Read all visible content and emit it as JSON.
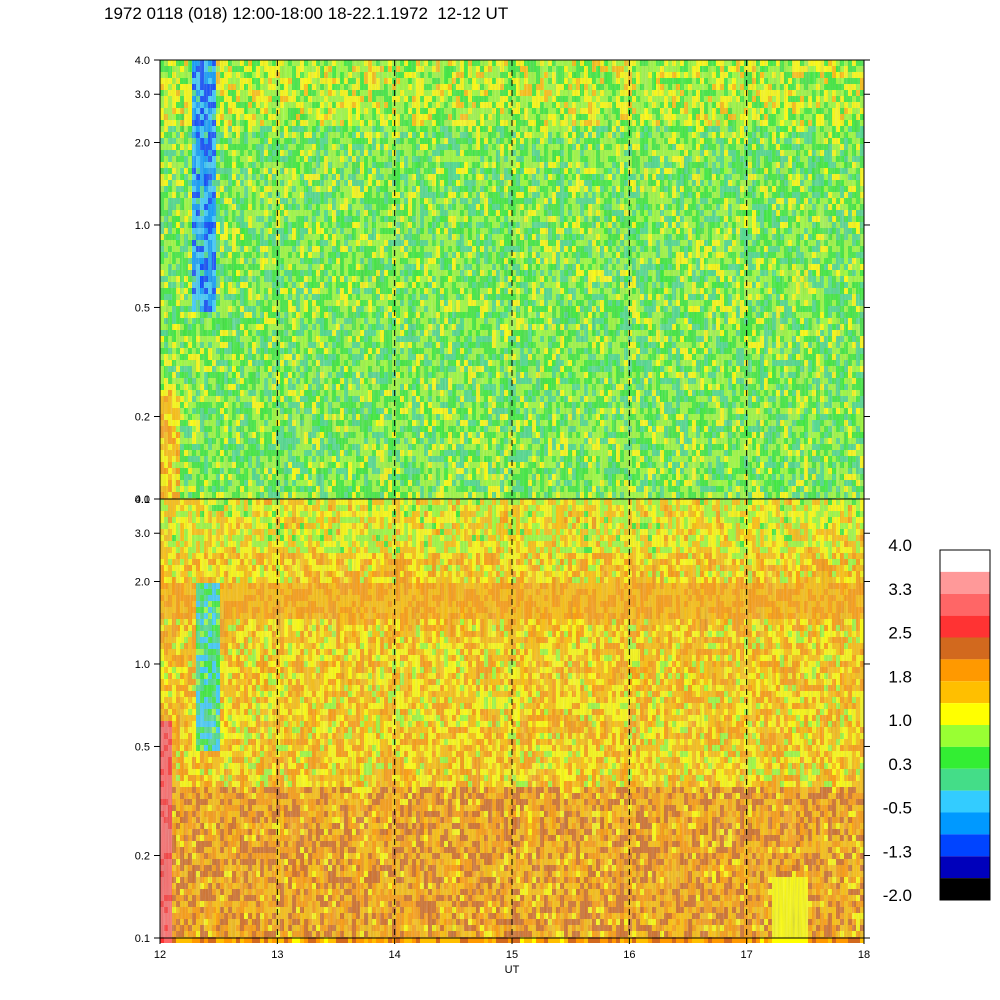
{
  "title": "1972 0118 (018) 12:00-18:00 18-22.1.1972  12-12 UT",
  "chart_data": [
    {
      "type": "heatmap",
      "panel": "upper",
      "x": [
        12,
        13,
        14,
        15,
        16,
        17,
        18
      ],
      "xlim": [
        12,
        18
      ],
      "y_ticks": [
        0.1,
        0.2,
        0.5,
        1.0,
        2.0,
        3.0,
        4.0
      ],
      "ylim": [
        0.1,
        4.0
      ],
      "y_scale": "log",
      "dashed_vlines": [
        13,
        14,
        15,
        16,
        17
      ],
      "dominant_level_range": [
        0.3,
        1.0
      ],
      "low_feature": {
        "x": [
          12.25,
          12.45
        ],
        "y": [
          0.5,
          4.0
        ],
        "level": -1.3
      }
    },
    {
      "type": "heatmap",
      "panel": "lower",
      "x": [
        12,
        13,
        14,
        15,
        16,
        17,
        18
      ],
      "xlim": [
        12,
        18
      ],
      "y_ticks": [
        0.1,
        0.2,
        0.5,
        1.0,
        2.0,
        3.0,
        4.0
      ],
      "ylim": [
        0.1,
        4.0
      ],
      "y_scale": "log",
      "dashed_vlines": [
        13,
        14,
        15,
        16,
        17
      ],
      "dominant_level_range": [
        1.0,
        2.5
      ],
      "band": {
        "y": [
          1.5,
          2.0
        ],
        "level": 1.8
      },
      "low_feature": {
        "x": [
          12.3,
          12.5
        ],
        "y": [
          0.5,
          2.0
        ],
        "level": -0.5
      },
      "xlabel": "UT"
    }
  ],
  "colorbar": {
    "labels": [
      "4.0",
      "3.3",
      "2.5",
      "1.8",
      "1.0",
      "0.3",
      "-0.5",
      "-1.3",
      "-2.0"
    ],
    "colors": [
      "#ffffff",
      "#ff9999",
      "#ff6666",
      "#ff3333",
      "#d2691e",
      "#ff9900",
      "#ffbf00",
      "#ffff00",
      "#99ff33",
      "#33ee33",
      "#44dd88",
      "#33ccff",
      "#0099ff",
      "#0044ff",
      "#0000bb",
      "#000000"
    ]
  }
}
